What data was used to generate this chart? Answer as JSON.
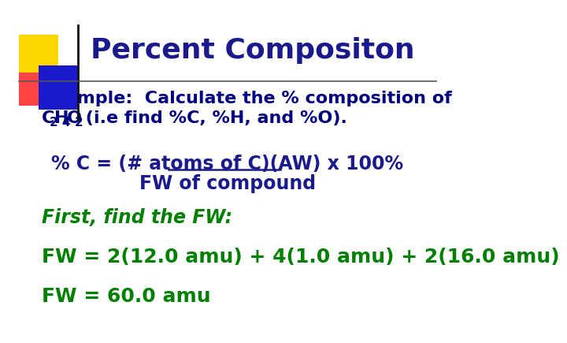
{
  "title": "Percent Compositon",
  "title_color": "#1a1a8c",
  "title_fontsize": 26,
  "bg_color": "#ffffff",
  "header_line_color": "#555555",
  "example_line1": "Example:  Calculate the % composition of",
  "example_color": "#000080",
  "formula_prefix": "% C = ",
  "formula_underlined": "(# atoms of C)(AW)",
  "formula_suffix": " x 100%",
  "formula_line2": "FW of compound",
  "formula_color": "#1a1a8c",
  "first_find_text": "First, find the FW:",
  "first_find_color": "#008000",
  "fw_eq_text": "FW = 2(12.0 amu) + 4(1.0 amu) + 2(16.0 amu)",
  "fw_result_text": "FW = 60.0 amu",
  "fw_color": "#008000",
  "yellow_color": "#FFD700",
  "red_color": "#FF4444",
  "blue_color": "#1a1aCC",
  "fontsize_body": 16,
  "fontsize_formula": 17,
  "fontsize_fw": 18,
  "fontsize_first": 17
}
